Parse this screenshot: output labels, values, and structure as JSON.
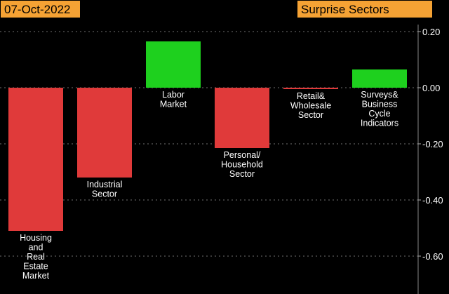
{
  "header": {
    "date": "07-Oct-2022",
    "title": "Surprise Sectors"
  },
  "colors": {
    "negative": "#e03a3a",
    "positive": "#1ed01e",
    "header_bg": "#f5a234",
    "gridline": "#cfcfcf",
    "axis_text": "#ffffff",
    "label_text": "#ffffff"
  },
  "chart_data": {
    "type": "bar",
    "title": "Surprise Sectors",
    "date": "07-Oct-2022",
    "categories": [
      [
        "Housing",
        "and",
        "Real",
        "Estate",
        "Market"
      ],
      [
        "Industrial",
        "Sector"
      ],
      [
        "Labor",
        "Market"
      ],
      [
        "Personal/",
        "Household",
        "Sector"
      ],
      [
        "Retail&",
        "Wholesale",
        "Sector"
      ],
      [
        "Surveys&",
        "Business",
        "Cycle",
        "Indicators"
      ]
    ],
    "values": [
      -0.51,
      -0.32,
      0.165,
      -0.215,
      -0.005,
      0.065
    ],
    "ylim": [
      -0.7,
      0.2
    ],
    "yticks": [
      0.2,
      0.0,
      -0.2,
      -0.4,
      -0.6
    ],
    "ytick_labels": [
      "0.20",
      "0.00",
      "-0.20",
      "-0.40",
      "-0.60"
    ],
    "grid": true,
    "xlabel": "",
    "ylabel": ""
  }
}
